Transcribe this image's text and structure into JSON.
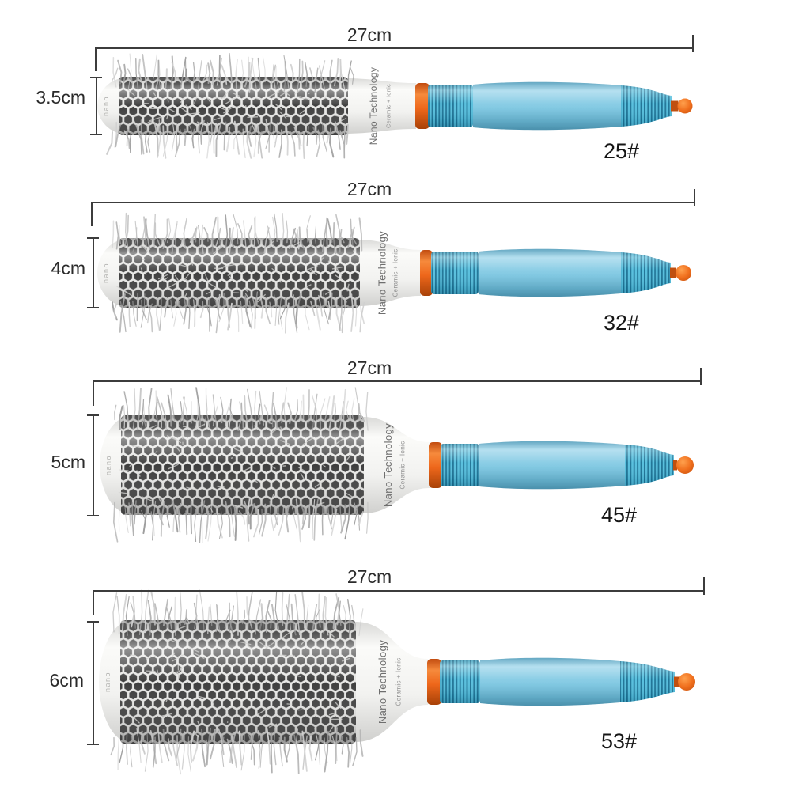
{
  "image_type": "product-size-photo",
  "brand": {
    "line1": "Nano Technology",
    "line2": "Ceramic + Ionic",
    "cap_text": "nano"
  },
  "brushes": [
    {
      "model": "25#",
      "length": "27cm",
      "diameter": "3.5cm"
    },
    {
      "model": "32#",
      "length": "27cm",
      "diameter": "4cm"
    },
    {
      "model": "45#",
      "length": "27cm",
      "diameter": "5cm"
    },
    {
      "model": "53#",
      "length": "27cm",
      "diameter": "6cm"
    }
  ],
  "colors": {
    "dimension": "#3c3c3c",
    "text": "#2b2b2b",
    "handle_blue": "#7fc8e2",
    "ribbed_cyan": "#54bedd",
    "ribbed_stripe": "#1a7194",
    "accent_orange": "#ee671b",
    "barrel_white": "#ececea",
    "hole_dark": "#3e3e3e",
    "bristle_gray": "#b5b5b5"
  }
}
